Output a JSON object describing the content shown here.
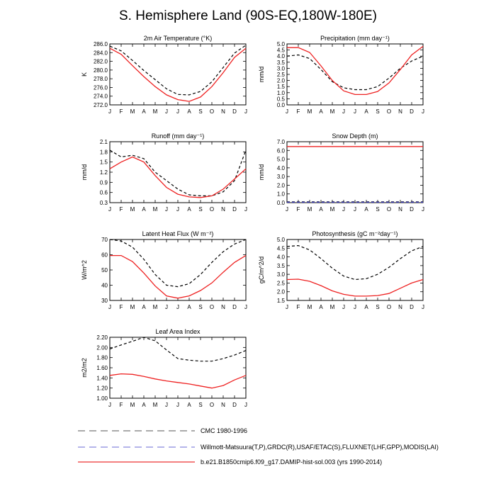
{
  "page": {
    "title": "S. Hemisphere Land (90S-EQ,180W-180E)"
  },
  "legend": [
    {
      "label": "CMC 1980-1996",
      "color": "#777777",
      "dash": "long"
    },
    {
      "label": "Willmott-Matsuura(T,P),GRDC(R),USAF/ETAC(S),FLUXNET(LHF,GPP),MODIS(LAI)",
      "color": "#8888dd",
      "dash": "long"
    },
    {
      "label": "b.e21.B1850cmip6.f09_g17.DAMIP-hist-sol.003 (yrs 1990-2014)",
      "color": "#ee3333",
      "dash": "solid"
    }
  ],
  "chart_data": [
    {
      "type": "line",
      "title": "2m Air Temperature (°K)",
      "ylabel": "K",
      "categories": [
        "J",
        "F",
        "M",
        "A",
        "M",
        "J",
        "J",
        "A",
        "S",
        "O",
        "N",
        "D",
        "J"
      ],
      "ylim": [
        272.0,
        286.0
      ],
      "yticks": [
        272.0,
        274.0,
        276.0,
        278.0,
        280.0,
        282.0,
        284.0,
        286.0
      ],
      "ytick_labels": [
        "272.0",
        "274.0",
        "276.0",
        "278.0",
        "280.0",
        "282.0",
        "284.0",
        "286.0"
      ],
      "series": [
        {
          "style": "obs",
          "values": [
            285.5,
            284.4,
            282.2,
            279.9,
            277.8,
            275.7,
            274.4,
            274.3,
            275.1,
            277.3,
            280.6,
            283.9,
            285.7
          ]
        },
        {
          "style": "model",
          "values": [
            285.0,
            283.6,
            281.0,
            278.5,
            276.2,
            274.3,
            273.2,
            272.8,
            273.8,
            276.2,
            279.4,
            282.9,
            285.0
          ]
        }
      ]
    },
    {
      "type": "line",
      "title": "Precipitation (mm day⁻¹)",
      "ylabel": "mm/d",
      "categories": [
        "J",
        "F",
        "M",
        "A",
        "M",
        "J",
        "J",
        "A",
        "S",
        "O",
        "N",
        "D",
        "J"
      ],
      "ylim": [
        0.0,
        5.0
      ],
      "yticks": [
        0.0,
        0.5,
        1.0,
        1.5,
        2.0,
        2.5,
        3.0,
        3.5,
        4.0,
        4.5,
        5.0
      ],
      "ytick_labels": [
        "0.0",
        "0.5",
        "1.0",
        "1.5",
        "2.0",
        "2.5",
        "3.0",
        "3.5",
        "4.0",
        "4.5",
        "5.0"
      ],
      "series": [
        {
          "style": "obs",
          "values": [
            4.0,
            4.1,
            3.8,
            2.9,
            1.9,
            1.4,
            1.25,
            1.25,
            1.5,
            2.2,
            3.0,
            3.6,
            4.0
          ]
        },
        {
          "style": "model",
          "values": [
            4.7,
            4.7,
            4.3,
            3.2,
            2.0,
            1.15,
            0.85,
            0.85,
            1.1,
            1.8,
            2.9,
            4.1,
            4.8
          ]
        }
      ]
    },
    {
      "type": "line",
      "title": "Runoff (mm day⁻¹)",
      "ylabel": "mm/d",
      "categories": [
        "J",
        "F",
        "M",
        "A",
        "M",
        "J",
        "J",
        "A",
        "S",
        "O",
        "N",
        "D",
        "J"
      ],
      "ylim": [
        0.3,
        2.1
      ],
      "yticks": [
        0.3,
        0.6,
        0.9,
        1.2,
        1.5,
        1.8,
        2.1
      ],
      "ytick_labels": [
        "0.3",
        "0.6",
        "0.9",
        "1.2",
        "1.5",
        "1.8",
        "2.1"
      ],
      "series": [
        {
          "style": "obs",
          "values": [
            1.85,
            1.65,
            1.7,
            1.6,
            1.2,
            0.95,
            0.7,
            0.53,
            0.5,
            0.5,
            0.62,
            0.95,
            1.85
          ]
        },
        {
          "style": "model",
          "values": [
            1.3,
            1.5,
            1.65,
            1.5,
            1.1,
            0.75,
            0.55,
            0.47,
            0.45,
            0.5,
            0.7,
            1.0,
            1.3
          ]
        }
      ]
    },
    {
      "type": "line",
      "title": "Snow Depth (m)",
      "ylabel": "mm/d",
      "categories": [
        "J",
        "F",
        "M",
        "A",
        "M",
        "J",
        "J",
        "A",
        "S",
        "O",
        "N",
        "D",
        "J"
      ],
      "ylim": [
        0.0,
        7.0
      ],
      "yticks": [
        0.0,
        1.0,
        2.0,
        3.0,
        4.0,
        5.0,
        6.0,
        7.0
      ],
      "ytick_labels": [
        "0.0",
        "1.0",
        "2.0",
        "3.0",
        "4.0",
        "5.0",
        "6.0",
        "7.0"
      ],
      "series": [
        {
          "style": "obs",
          "values": [
            0.1,
            0.1,
            0.1,
            0.1,
            0.1,
            0.1,
            0.1,
            0.1,
            0.1,
            0.1,
            0.1,
            0.1,
            0.1
          ]
        },
        {
          "style": "obs2",
          "values": [
            0.05,
            0.05,
            0.05,
            0.05,
            0.05,
            0.05,
            0.05,
            0.05,
            0.05,
            0.05,
            0.05,
            0.05,
            0.05
          ]
        },
        {
          "style": "model",
          "values": [
            6.45,
            6.45,
            6.45,
            6.45,
            6.45,
            6.45,
            6.45,
            6.45,
            6.45,
            6.45,
            6.45,
            6.45,
            6.45
          ]
        }
      ]
    },
    {
      "type": "line",
      "title": "Latent Heat Flux (W m⁻²)",
      "ylabel": "W/m^2",
      "categories": [
        "J",
        "F",
        "M",
        "A",
        "M",
        "J",
        "J",
        "A",
        "S",
        "O",
        "N",
        "D",
        "J"
      ],
      "ylim": [
        30,
        70
      ],
      "yticks": [
        30,
        40,
        50,
        60,
        70
      ],
      "ytick_labels": [
        "30",
        "40",
        "50",
        "60",
        "70"
      ],
      "series": [
        {
          "style": "obs",
          "values": [
            70,
            69,
            65,
            57,
            47,
            40,
            39,
            41,
            47,
            55,
            62,
            67,
            70
          ]
        },
        {
          "style": "model",
          "values": [
            59.5,
            59.5,
            55.5,
            48,
            39.5,
            33,
            31.5,
            33,
            36.5,
            41.5,
            48.5,
            55,
            59.5
          ]
        }
      ]
    },
    {
      "type": "line",
      "title": "Photosynthesis (gC m⁻²day⁻¹)",
      "ylabel": "gC/m^2/d",
      "categories": [
        "J",
        "F",
        "M",
        "A",
        "M",
        "J",
        "J",
        "A",
        "S",
        "O",
        "N",
        "D",
        "J"
      ],
      "ylim": [
        1.5,
        5.0
      ],
      "yticks": [
        1.5,
        2.0,
        2.5,
        3.0,
        3.5,
        4.0,
        4.5,
        5.0
      ],
      "ytick_labels": [
        "1.5",
        "2.0",
        "2.5",
        "3.0",
        "3.5",
        "4.0",
        "4.5",
        "5.0"
      ],
      "series": [
        {
          "style": "obs",
          "values": [
            4.6,
            4.65,
            4.4,
            3.9,
            3.35,
            2.9,
            2.7,
            2.75,
            3.0,
            3.4,
            3.9,
            4.35,
            4.6
          ]
        },
        {
          "style": "model",
          "values": [
            2.7,
            2.72,
            2.6,
            2.35,
            2.05,
            1.85,
            1.75,
            1.75,
            1.78,
            1.9,
            2.2,
            2.5,
            2.7
          ]
        }
      ]
    },
    {
      "type": "line",
      "title": "Leaf Area Index",
      "ylabel": "m2/m2",
      "categories": [
        "J",
        "F",
        "M",
        "A",
        "M",
        "J",
        "J",
        "A",
        "S",
        "O",
        "N",
        "D",
        "J"
      ],
      "ylim": [
        1.0,
        2.2
      ],
      "yticks": [
        1.0,
        1.2,
        1.4,
        1.6,
        1.8,
        2.0,
        2.2
      ],
      "ytick_labels": [
        "1.00",
        "1.20",
        "1.40",
        "1.60",
        "1.80",
        "2.00",
        "2.20"
      ],
      "series": [
        {
          "style": "obs",
          "values": [
            1.97,
            2.05,
            2.12,
            2.2,
            2.13,
            1.95,
            1.78,
            1.75,
            1.73,
            1.73,
            1.78,
            1.85,
            1.94
          ]
        },
        {
          "style": "model",
          "values": [
            1.45,
            1.48,
            1.47,
            1.43,
            1.38,
            1.34,
            1.31,
            1.28,
            1.24,
            1.2,
            1.25,
            1.36,
            1.45
          ]
        }
      ]
    }
  ]
}
